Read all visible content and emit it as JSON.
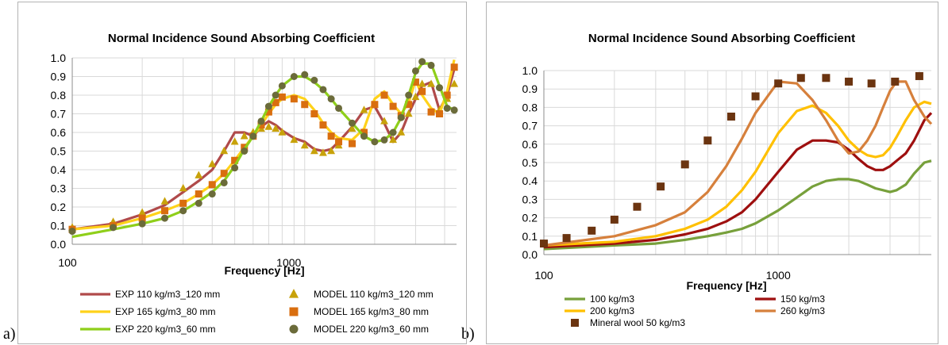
{
  "panels": [
    {
      "label": "a)"
    },
    {
      "label": "b)"
    }
  ],
  "chart_data": [
    {
      "type": "line",
      "title": "Normal Incidence Sound Absorbing Coefficient",
      "xlabel": "Frequency [Hz]",
      "ylabel": "",
      "xscale": "log",
      "xlim": [
        100,
        4500
      ],
      "ylim": [
        0,
        1.0
      ],
      "xticks": [
        "100",
        "1000"
      ],
      "yticks": [
        "0.0",
        "0.1",
        "0.2",
        "0.3",
        "0.4",
        "0.5",
        "0.6",
        "0.7",
        "0.8",
        "0.9",
        "1.0"
      ],
      "grid": true,
      "legend_position": "bottom",
      "series": [
        {
          "name": "EXP 110 kg/m3_120 mm",
          "kind": "line",
          "color": "#b04a4a",
          "x": [
            100,
            150,
            200,
            250,
            300,
            350,
            400,
            450,
            500,
            550,
            600,
            650,
            700,
            750,
            800,
            900,
            1000,
            1100,
            1200,
            1300,
            1400,
            1600,
            1800,
            2000,
            2200,
            2400,
            2600,
            2800,
            3000,
            3200,
            3500,
            3800,
            4100,
            4400
          ],
          "y": [
            0.08,
            0.11,
            0.16,
            0.21,
            0.28,
            0.34,
            0.4,
            0.5,
            0.6,
            0.6,
            0.58,
            0.63,
            0.66,
            0.64,
            0.61,
            0.57,
            0.55,
            0.51,
            0.5,
            0.51,
            0.55,
            0.63,
            0.72,
            0.74,
            0.65,
            0.55,
            0.6,
            0.7,
            0.78,
            0.85,
            0.87,
            0.72,
            0.8,
            0.94
          ]
        },
        {
          "name": "MODEL 110 kg/m3_120 mm",
          "kind": "marker",
          "marker": "triangle",
          "color": "#c8a20a",
          "x": [
            100,
            150,
            200,
            250,
            300,
            350,
            400,
            450,
            500,
            550,
            600,
            650,
            700,
            750,
            800,
            900,
            1000,
            1100,
            1200,
            1300,
            1400,
            1600,
            1800,
            2000,
            2200,
            2400,
            2600,
            2800,
            3000,
            3200,
            3500,
            3800,
            4100,
            4400
          ],
          "y": [
            0.09,
            0.12,
            0.17,
            0.23,
            0.3,
            0.37,
            0.43,
            0.5,
            0.55,
            0.58,
            0.6,
            0.62,
            0.63,
            0.62,
            0.6,
            0.56,
            0.53,
            0.5,
            0.49,
            0.5,
            0.53,
            0.62,
            0.72,
            0.75,
            0.66,
            0.56,
            0.6,
            0.7,
            0.79,
            0.86,
            0.86,
            0.72,
            0.78,
            0.86
          ]
        },
        {
          "name": "EXP 165 kg/m3_80 mm",
          "kind": "line",
          "color": "#ffd21a",
          "x": [
            100,
            150,
            200,
            250,
            300,
            350,
            400,
            450,
            500,
            550,
            600,
            650,
            700,
            750,
            800,
            900,
            1000,
            1100,
            1200,
            1300,
            1400,
            1600,
            1800,
            2000,
            2200,
            2400,
            2600,
            2800,
            3000,
            3200,
            3500,
            3800,
            4100,
            4400
          ],
          "y": [
            0.08,
            0.1,
            0.14,
            0.18,
            0.22,
            0.27,
            0.32,
            0.38,
            0.45,
            0.52,
            0.58,
            0.64,
            0.7,
            0.75,
            0.78,
            0.8,
            0.78,
            0.72,
            0.65,
            0.6,
            0.57,
            0.56,
            0.62,
            0.78,
            0.82,
            0.75,
            0.7,
            0.76,
            0.88,
            0.8,
            0.73,
            0.7,
            0.82,
            0.99
          ]
        },
        {
          "name": "MODEL 165 kg/m3_80 mm",
          "kind": "marker",
          "marker": "square",
          "color": "#d96e0f",
          "x": [
            100,
            150,
            200,
            250,
            300,
            350,
            400,
            450,
            500,
            550,
            600,
            650,
            700,
            750,
            800,
            900,
            1000,
            1100,
            1200,
            1300,
            1400,
            1600,
            1800,
            2000,
            2200,
            2400,
            2600,
            2800,
            3000,
            3200,
            3500,
            3800,
            4100,
            4400
          ],
          "y": [
            0.08,
            0.1,
            0.14,
            0.18,
            0.22,
            0.27,
            0.32,
            0.38,
            0.45,
            0.52,
            0.58,
            0.64,
            0.71,
            0.76,
            0.79,
            0.78,
            0.75,
            0.7,
            0.64,
            0.58,
            0.55,
            0.54,
            0.6,
            0.75,
            0.8,
            0.74,
            0.69,
            0.75,
            0.87,
            0.82,
            0.71,
            0.7,
            0.8,
            0.95
          ]
        },
        {
          "name": "EXP 220 kg/m3_60 mm",
          "kind": "line",
          "color": "#8fcf1a",
          "x": [
            100,
            150,
            200,
            250,
            300,
            350,
            400,
            450,
            500,
            550,
            600,
            650,
            700,
            750,
            800,
            900,
            1000,
            1100,
            1200,
            1300,
            1400,
            1600,
            1800,
            2000,
            2200,
            2400,
            2600,
            2800,
            3000,
            3200,
            3500,
            3800,
            4100,
            4400
          ],
          "y": [
            0.04,
            0.08,
            0.11,
            0.14,
            0.18,
            0.23,
            0.28,
            0.34,
            0.42,
            0.51,
            0.58,
            0.66,
            0.74,
            0.8,
            0.85,
            0.9,
            0.9,
            0.87,
            0.83,
            0.78,
            0.73,
            0.65,
            0.58,
            0.55,
            0.56,
            0.6,
            0.68,
            0.8,
            0.92,
            0.97,
            0.97,
            0.85,
            0.74,
            0.72
          ]
        },
        {
          "name": "MODEL 220 kg/m3_60 mm",
          "kind": "marker",
          "marker": "circle",
          "color": "#6b6b3a",
          "x": [
            100,
            150,
            200,
            250,
            300,
            350,
            400,
            450,
            500,
            550,
            600,
            650,
            700,
            750,
            800,
            900,
            1000,
            1100,
            1200,
            1300,
            1400,
            1600,
            1800,
            2000,
            2200,
            2400,
            2600,
            2800,
            3000,
            3200,
            3500,
            3800,
            4100,
            4400
          ],
          "y": [
            0.07,
            0.09,
            0.11,
            0.14,
            0.18,
            0.22,
            0.27,
            0.33,
            0.41,
            0.5,
            0.58,
            0.66,
            0.74,
            0.8,
            0.85,
            0.9,
            0.91,
            0.88,
            0.83,
            0.78,
            0.73,
            0.65,
            0.58,
            0.55,
            0.56,
            0.6,
            0.68,
            0.8,
            0.93,
            0.98,
            0.96,
            0.84,
            0.73,
            0.72
          ]
        }
      ]
    },
    {
      "type": "line",
      "title": "Normal Incidence Sound Absorbing Coefficient",
      "xlabel": "Frequency [Hz]",
      "ylabel": "",
      "xscale": "log",
      "xlim": [
        100,
        4500
      ],
      "ylim": [
        0,
        1.0
      ],
      "xticks": [
        "100",
        "1000"
      ],
      "yticks": [
        "0.0",
        "0.1",
        "0.2",
        "0.3",
        "0.4",
        "0.5",
        "0.6",
        "0.7",
        "0.8",
        "0.9",
        "1.0"
      ],
      "grid": true,
      "legend_position": "bottom",
      "series": [
        {
          "name": "100 kg/m3",
          "kind": "line",
          "color": "#77a03b",
          "x": [
            100,
            200,
            300,
            400,
            500,
            600,
            700,
            800,
            1000,
            1200,
            1400,
            1600,
            1800,
            2000,
            2200,
            2400,
            2600,
            2800,
            3000,
            3200,
            3500,
            3800,
            4200,
            4500
          ],
          "y": [
            0.03,
            0.05,
            0.06,
            0.08,
            0.1,
            0.12,
            0.14,
            0.17,
            0.24,
            0.31,
            0.37,
            0.4,
            0.41,
            0.41,
            0.4,
            0.38,
            0.36,
            0.35,
            0.34,
            0.35,
            0.38,
            0.44,
            0.5,
            0.51
          ]
        },
        {
          "name": "150 kg/m3",
          "kind": "line",
          "color": "#9e0f0f",
          "x": [
            100,
            200,
            300,
            400,
            500,
            600,
            700,
            800,
            1000,
            1200,
            1400,
            1600,
            1800,
            2000,
            2200,
            2400,
            2600,
            2800,
            3000,
            3200,
            3500,
            3800,
            4200,
            4500
          ],
          "y": [
            0.04,
            0.06,
            0.08,
            0.11,
            0.14,
            0.18,
            0.23,
            0.3,
            0.45,
            0.57,
            0.62,
            0.62,
            0.61,
            0.57,
            0.52,
            0.48,
            0.46,
            0.46,
            0.48,
            0.51,
            0.55,
            0.62,
            0.73,
            0.77
          ]
        },
        {
          "name": "200 kg/m3",
          "kind": "line",
          "color": "#ffc000",
          "x": [
            100,
            200,
            300,
            400,
            500,
            600,
            700,
            800,
            1000,
            1200,
            1400,
            1600,
            1800,
            2000,
            2200,
            2400,
            2600,
            2800,
            3000,
            3200,
            3500,
            3800,
            4200,
            4500
          ],
          "y": [
            0.05,
            0.07,
            0.1,
            0.14,
            0.19,
            0.26,
            0.35,
            0.45,
            0.66,
            0.78,
            0.81,
            0.77,
            0.7,
            0.62,
            0.57,
            0.54,
            0.53,
            0.54,
            0.58,
            0.64,
            0.73,
            0.8,
            0.83,
            0.82
          ]
        },
        {
          "name": "260 kg/m3",
          "kind": "line",
          "color": "#d6803c",
          "x": [
            100,
            200,
            300,
            400,
            500,
            600,
            700,
            800,
            1000,
            1200,
            1400,
            1600,
            1800,
            2000,
            2200,
            2400,
            2600,
            2800,
            3000,
            3200,
            3500,
            3800,
            4200,
            4500
          ],
          "y": [
            0.05,
            0.1,
            0.16,
            0.23,
            0.34,
            0.48,
            0.63,
            0.77,
            0.94,
            0.93,
            0.84,
            0.73,
            0.62,
            0.55,
            0.56,
            0.62,
            0.7,
            0.8,
            0.89,
            0.94,
            0.94,
            0.84,
            0.75,
            0.71
          ]
        },
        {
          "name": "Mineral wool 50 kg/m3",
          "kind": "marker",
          "marker": "square",
          "color": "#6b3410",
          "x": [
            100,
            125,
            160,
            200,
            250,
            315,
            400,
            500,
            630,
            800,
            1000,
            1250,
            1600,
            2000,
            2500,
            3150,
            4000
          ],
          "y": [
            0.06,
            0.09,
            0.13,
            0.19,
            0.26,
            0.37,
            0.49,
            0.62,
            0.75,
            0.86,
            0.93,
            0.96,
            0.96,
            0.94,
            0.93,
            0.94,
            0.97
          ]
        }
      ]
    }
  ]
}
